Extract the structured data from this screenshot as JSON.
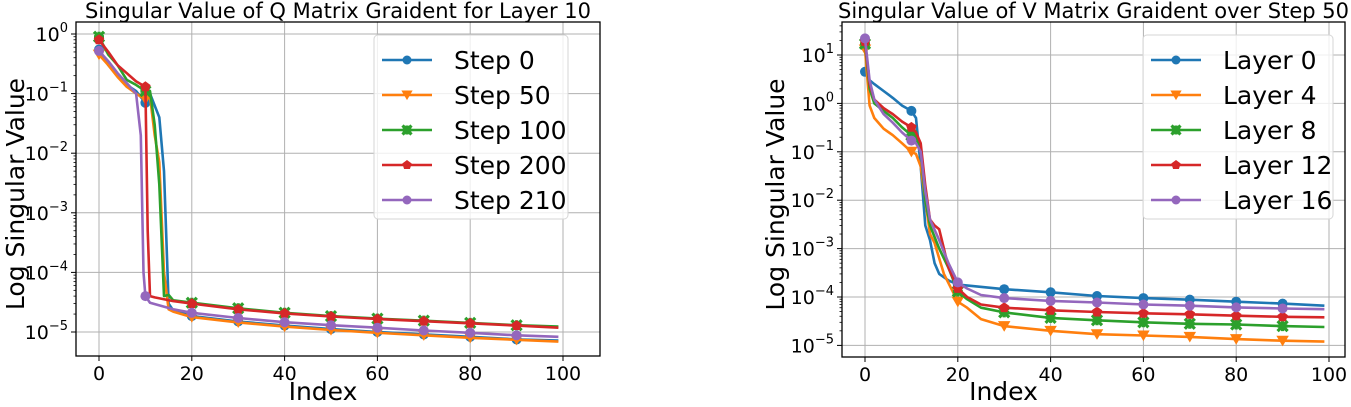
{
  "chart_data": [
    {
      "type": "line",
      "title": "Singular Value of Q Matrix Graident for Layer 10",
      "xlabel": "Index",
      "ylabel": "Log Singular Value",
      "yscale": "log",
      "xlim": [
        -5,
        103
      ],
      "ylim": [
        4e-06,
        1.6
      ],
      "xticks": [
        0,
        20,
        40,
        60,
        80,
        100
      ],
      "yticks": [
        1,
        0.1,
        0.01,
        0.001,
        0.0001,
        1e-05
      ],
      "ytick_labels": [
        "10^0",
        "10^-1",
        "10^-2",
        "10^-3",
        "10^-4",
        "10^-5"
      ],
      "grid": true,
      "legend_position": "upper right",
      "marker_every": 10,
      "series": [
        {
          "name": "Step 0",
          "color": "#1f77b4",
          "marker": "circle",
          "points": [
            [
              0,
              0.55
            ],
            [
              2,
              0.3
            ],
            [
              4,
              0.2
            ],
            [
              6,
              0.14
            ],
            [
              8,
              0.11
            ],
            [
              10,
              0.07
            ],
            [
              11,
              0.1
            ],
            [
              13,
              0.04
            ],
            [
              14,
              0.005
            ],
            [
              15,
              3e-05
            ],
            [
              16,
              2.3e-05
            ],
            [
              20,
              1.85e-05
            ],
            [
              30,
              1.5e-05
            ],
            [
              40,
              1.28e-05
            ],
            [
              50,
              1.12e-05
            ],
            [
              60,
              1e-05
            ],
            [
              70,
              9.1e-06
            ],
            [
              80,
              8.3e-06
            ],
            [
              90,
              7.5e-06
            ],
            [
              99,
              7.2e-06
            ]
          ]
        },
        {
          "name": "Step 50",
          "color": "#ff7f0e",
          "marker": "triangle-down",
          "points": [
            [
              0,
              0.45
            ],
            [
              2,
              0.3
            ],
            [
              4,
              0.19
            ],
            [
              6,
              0.13
            ],
            [
              8,
              0.1
            ],
            [
              10,
              0.08
            ],
            [
              11,
              0.09
            ],
            [
              12,
              0.02
            ],
            [
              13,
              0.007
            ],
            [
              14,
              0.0001
            ],
            [
              15,
              2.4e-05
            ],
            [
              16,
              2.2e-05
            ],
            [
              20,
              1.78e-05
            ],
            [
              30,
              1.45e-05
            ],
            [
              40,
              1.23e-05
            ],
            [
              50,
              1.08e-05
            ],
            [
              60,
              9.7e-06
            ],
            [
              70,
              8.8e-06
            ],
            [
              80,
              8e-06
            ],
            [
              90,
              7.4e-06
            ],
            [
              99,
              6.9e-06
            ]
          ]
        },
        {
          "name": "Step 100",
          "color": "#2ca02c",
          "marker": "x",
          "points": [
            [
              0,
              0.9
            ],
            [
              2,
              0.45
            ],
            [
              4,
              0.3
            ],
            [
              6,
              0.17
            ],
            [
              8,
              0.14
            ],
            [
              10,
              0.11
            ],
            [
              11,
              0.11
            ],
            [
              12,
              0.03
            ],
            [
              13,
              0.003
            ],
            [
              14,
              4e-05
            ],
            [
              15,
              4.2e-05
            ],
            [
              16,
              3.4e-05
            ],
            [
              20,
              3.1e-05
            ],
            [
              30,
              2.5e-05
            ],
            [
              40,
              2.1e-05
            ],
            [
              50,
              1.85e-05
            ],
            [
              60,
              1.68e-05
            ],
            [
              70,
              1.55e-05
            ],
            [
              80,
              1.42e-05
            ],
            [
              90,
              1.3e-05
            ],
            [
              99,
              1.23e-05
            ]
          ]
        },
        {
          "name": "Step 200",
          "color": "#d62728",
          "marker": "pentagon",
          "points": [
            [
              0,
              0.8
            ],
            [
              2,
              0.5
            ],
            [
              4,
              0.3
            ],
            [
              6,
              0.22
            ],
            [
              8,
              0.16
            ],
            [
              10,
              0.13
            ],
            [
              10.5,
              0.0005
            ],
            [
              11,
              4e-05
            ],
            [
              12,
              3.8e-05
            ],
            [
              16,
              3.3e-05
            ],
            [
              20,
              3e-05
            ],
            [
              30,
              2.4e-05
            ],
            [
              40,
              2.05e-05
            ],
            [
              50,
              1.82e-05
            ],
            [
              60,
              1.65e-05
            ],
            [
              70,
              1.52e-05
            ],
            [
              80,
              1.4e-05
            ],
            [
              90,
              1.28e-05
            ],
            [
              99,
              1.18e-05
            ]
          ]
        },
        {
          "name": "Step 210",
          "color": "#9467bd",
          "marker": "circle",
          "points": [
            [
              0,
              0.52
            ],
            [
              2,
              0.35
            ],
            [
              4,
              0.22
            ],
            [
              6,
              0.15
            ],
            [
              8,
              0.1
            ],
            [
              9,
              0.02
            ],
            [
              9.6,
              0.0001
            ],
            [
              10,
              4e-05
            ],
            [
              11,
              3.1e-05
            ],
            [
              16,
              2.4e-05
            ],
            [
              20,
              2.1e-05
            ],
            [
              30,
              1.72e-05
            ],
            [
              40,
              1.46e-05
            ],
            [
              50,
              1.3e-05
            ],
            [
              60,
              1.18e-05
            ],
            [
              70,
              1.06e-05
            ],
            [
              80,
              9.7e-06
            ],
            [
              90,
              8.8e-06
            ],
            [
              99,
              8.3e-06
            ]
          ]
        }
      ]
    },
    {
      "type": "line",
      "title": "Singular Value of V Matrix Graident over Step 50",
      "xlabel": "Index",
      "ylabel": "Log Singular Value",
      "yscale": "log",
      "xlim": [
        -5,
        103
      ],
      "ylim": [
        6e-06,
        45
      ],
      "xticks": [
        0,
        20,
        40,
        60,
        80,
        100
      ],
      "yticks": [
        10,
        1,
        0.1,
        0.01,
        0.001,
        0.0001,
        1e-05
      ],
      "ytick_labels": [
        "10^1",
        "10^0",
        "10^-1",
        "10^-2",
        "10^-3",
        "10^-4",
        "10^-5"
      ],
      "grid": true,
      "legend_position": "upper right",
      "marker_every": 10,
      "series": [
        {
          "name": "Layer 0",
          "color": "#1f77b4",
          "marker": "circle",
          "points": [
            [
              0,
              4.5
            ],
            [
              1,
              3.0
            ],
            [
              2,
              2.5
            ],
            [
              4,
              1.8
            ],
            [
              6,
              1.3
            ],
            [
              8,
              0.9
            ],
            [
              10,
              0.7
            ],
            [
              11,
              0.5
            ],
            [
              12,
              0.05
            ],
            [
              13,
              0.003
            ],
            [
              14,
              0.0015
            ],
            [
              15,
              0.0005
            ],
            [
              16,
              0.0003
            ],
            [
              18,
              0.00022
            ],
            [
              20,
              0.00018
            ],
            [
              30,
              0.000145
            ],
            [
              40,
              0.000125
            ],
            [
              50,
              0.000105
            ],
            [
              60,
              9.5e-05
            ],
            [
              70,
              8.8e-05
            ],
            [
              80,
              8e-05
            ],
            [
              90,
              7.3e-05
            ],
            [
              99,
              6.6e-05
            ]
          ]
        },
        {
          "name": "Layer 4",
          "color": "#ff7f0e",
          "marker": "triangle-down",
          "points": [
            [
              0,
              13
            ],
            [
              1,
              0.9
            ],
            [
              2,
              0.5
            ],
            [
              4,
              0.3
            ],
            [
              6,
              0.22
            ],
            [
              8,
              0.15
            ],
            [
              10,
              0.1
            ],
            [
              11,
              0.09
            ],
            [
              12,
              0.05
            ],
            [
              13,
              0.01
            ],
            [
              14,
              0.002
            ],
            [
              15,
              0.0013
            ],
            [
              17,
              0.0003
            ],
            [
              20,
              8e-05
            ],
            [
              22,
              6e-05
            ],
            [
              25,
              3.5e-05
            ],
            [
              30,
              2.5e-05
            ],
            [
              40,
              2e-05
            ],
            [
              50,
              1.7e-05
            ],
            [
              60,
              1.6e-05
            ],
            [
              70,
              1.5e-05
            ],
            [
              80,
              1.35e-05
            ],
            [
              90,
              1.25e-05
            ],
            [
              99,
              1.2e-05
            ]
          ]
        },
        {
          "name": "Layer 8",
          "color": "#2ca02c",
          "marker": "x",
          "points": [
            [
              0,
              17
            ],
            [
              1,
              2.0
            ],
            [
              2,
              1.0
            ],
            [
              4,
              0.7
            ],
            [
              6,
              0.5
            ],
            [
              8,
              0.32
            ],
            [
              10,
              0.22
            ],
            [
              11,
              0.2
            ],
            [
              12,
              0.1
            ],
            [
              13,
              0.01
            ],
            [
              14,
              0.003
            ],
            [
              16,
              0.001
            ],
            [
              18,
              0.0004
            ],
            [
              20,
              0.00013
            ],
            [
              22,
              9e-05
            ],
            [
              25,
              6e-05
            ],
            [
              30,
              4.8e-05
            ],
            [
              40,
              3.7e-05
            ],
            [
              50,
              3.3e-05
            ],
            [
              60,
              3e-05
            ],
            [
              70,
              2.8e-05
            ],
            [
              80,
              2.7e-05
            ],
            [
              90,
              2.5e-05
            ],
            [
              99,
              2.4e-05
            ]
          ]
        },
        {
          "name": "Layer 12",
          "color": "#d62728",
          "marker": "pentagon",
          "points": [
            [
              0,
              19
            ],
            [
              1,
              2.5
            ],
            [
              2,
              1.2
            ],
            [
              4,
              0.8
            ],
            [
              6,
              0.6
            ],
            [
              8,
              0.42
            ],
            [
              10,
              0.32
            ],
            [
              11,
              0.25
            ],
            [
              12,
              0.15
            ],
            [
              13,
              0.02
            ],
            [
              14,
              0.004
            ],
            [
              15,
              0.003
            ],
            [
              16,
              0.0025
            ],
            [
              17,
              0.001
            ],
            [
              18,
              0.0004
            ],
            [
              20,
              0.00015
            ],
            [
              22,
              0.0001
            ],
            [
              25,
              7e-05
            ],
            [
              30,
              6e-05
            ],
            [
              40,
              5.3e-05
            ],
            [
              50,
              4.9e-05
            ],
            [
              60,
              4.6e-05
            ],
            [
              70,
              4.4e-05
            ],
            [
              80,
              4.1e-05
            ],
            [
              90,
              3.9e-05
            ],
            [
              99,
              3.8e-05
            ]
          ]
        },
        {
          "name": "Layer 16",
          "color": "#9467bd",
          "marker": "circle",
          "points": [
            [
              0,
              22
            ],
            [
              1,
              3.0
            ],
            [
              2,
              1.2
            ],
            [
              4,
              0.6
            ],
            [
              6,
              0.4
            ],
            [
              8,
              0.25
            ],
            [
              10,
              0.17
            ],
            [
              11,
              0.15
            ],
            [
              12,
              0.1
            ],
            [
              13,
              0.015
            ],
            [
              14,
              0.004
            ],
            [
              16,
              0.0015
            ],
            [
              18,
              0.0005
            ],
            [
              20,
              0.0002
            ],
            [
              22,
              0.00015
            ],
            [
              25,
              0.00011
            ],
            [
              30,
              9.5e-05
            ],
            [
              40,
              8.3e-05
            ],
            [
              50,
              7.7e-05
            ],
            [
              60,
              7e-05
            ],
            [
              70,
              6.6e-05
            ],
            [
              80,
              6.1e-05
            ],
            [
              90,
              5.8e-05
            ],
            [
              99,
              5.6e-05
            ]
          ]
        }
      ]
    }
  ],
  "charts": [
    {
      "title": "Singular Value of Q Matrix Graident for Layer 10",
      "xlabel": "Index",
      "ylabel": "Log Singular Value"
    },
    {
      "title": "Singular Value of V Matrix Graident over Step 50",
      "xlabel": "Index",
      "ylabel": "Log Singular Value"
    }
  ]
}
